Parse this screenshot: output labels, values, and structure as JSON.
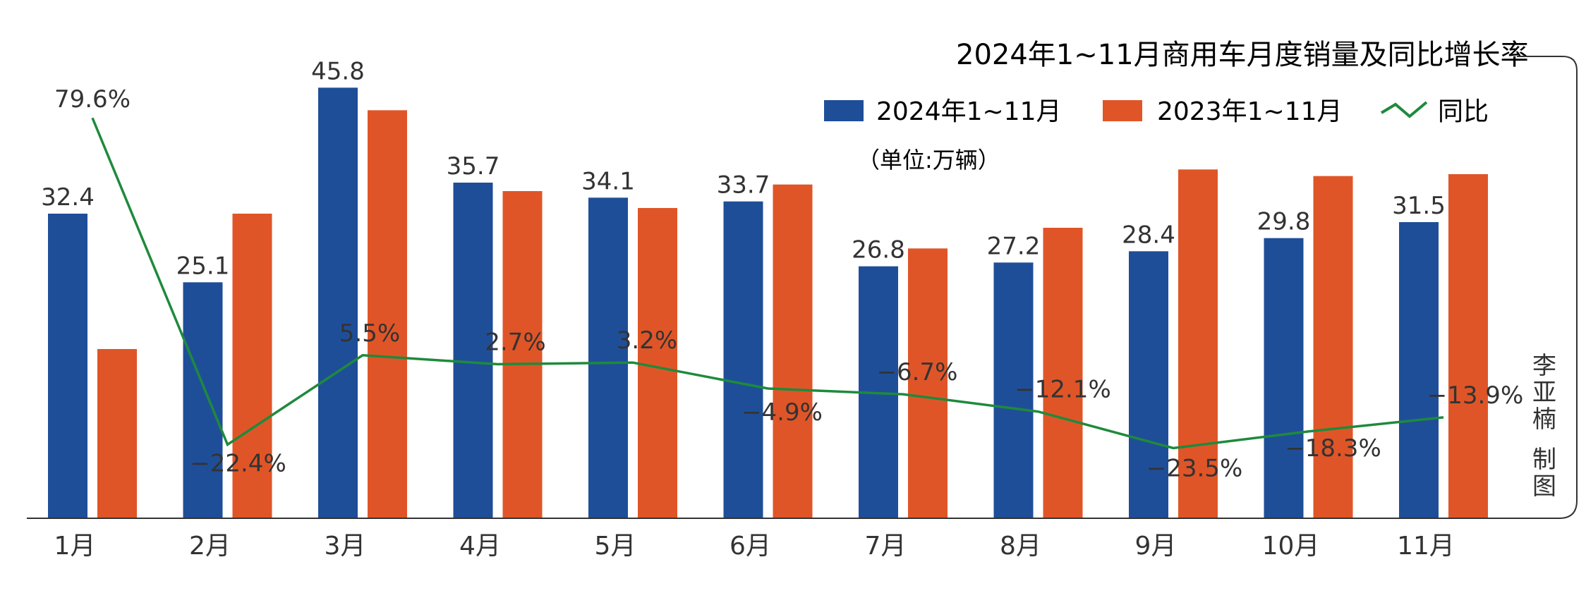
{
  "chart_data": {
    "type": "bar",
    "title": "2024年1~11月商用车月度销量及同比增长率",
    "unit": "（单位:万辆）",
    "credit": [
      "李亚楠",
      "制图"
    ],
    "categories": [
      "1月",
      "2月",
      "3月",
      "4月",
      "5月",
      "6月",
      "7月",
      "8月",
      "9月",
      "10月",
      "11月"
    ],
    "ylim": [
      0,
      48
    ],
    "series": [
      {
        "name": "2024年1~11月",
        "color": "#1f4e99",
        "values": [
          32.4,
          25.1,
          45.8,
          35.7,
          34.1,
          33.7,
          26.8,
          27.2,
          28.4,
          29.8,
          31.5
        ],
        "labels": [
          "32.4",
          "25.1",
          "45.8",
          "35.7",
          "34.1",
          "33.7",
          "26.8",
          "27.2",
          "28.4",
          "29.8",
          "31.5"
        ]
      },
      {
        "name": "2023年1~11月",
        "color": "#e05527",
        "values": [
          18.0,
          32.4,
          43.4,
          34.8,
          33.0,
          35.5,
          28.7,
          30.9,
          37.1,
          36.4,
          36.6
        ],
        "labels": []
      }
    ],
    "line": {
      "name": "同比",
      "color": "#1e8a3c",
      "ylim": [
        -30,
        90
      ],
      "values": [
        79.6,
        -22.4,
        5.5,
        2.7,
        3.2,
        -4.9,
        -6.7,
        -12.1,
        -23.5,
        -18.3,
        -13.9
      ],
      "labels": [
        "79.6%",
        "−22.4%",
        "5.5%",
        "2.7%",
        "3.2%",
        "−4.9%",
        "−6.7%",
        "−12.1%",
        "−23.5%",
        "−18.3%",
        "−13.9%"
      ]
    },
    "grid": false,
    "legend_position": "top-right"
  }
}
